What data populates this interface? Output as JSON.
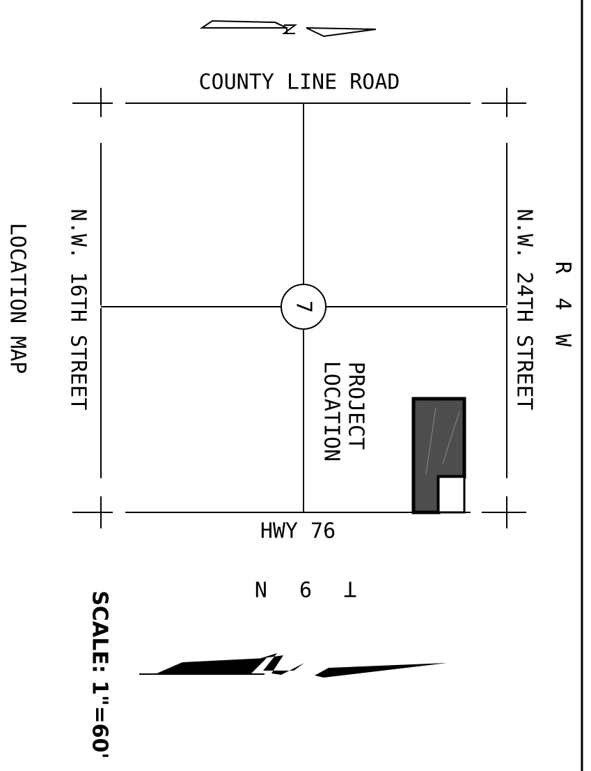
{
  "labels": {
    "north_road": "COUNTY LINE ROAD",
    "south_road": "HWY 76",
    "west_road": "N.W. 16TH STREET",
    "east_road": "N.W. 24TH STREET",
    "range": "R 4 W",
    "township": "T 9 N",
    "highway_shield": "7",
    "project_line1": "PROJECT",
    "project_line2": "LOCATION",
    "map_title": "LOCATION MAP",
    "scale": "SCALE: 1\"=60'"
  },
  "colors": {
    "line": "#000000",
    "project_fill": "#4d4d4d",
    "background": "#ffffff"
  },
  "icons": {
    "north_arrow_top": "north-arrow-icon",
    "north_arrow_bottom": "north-arrow-icon",
    "highway_shield": "route-shield-icon"
  }
}
